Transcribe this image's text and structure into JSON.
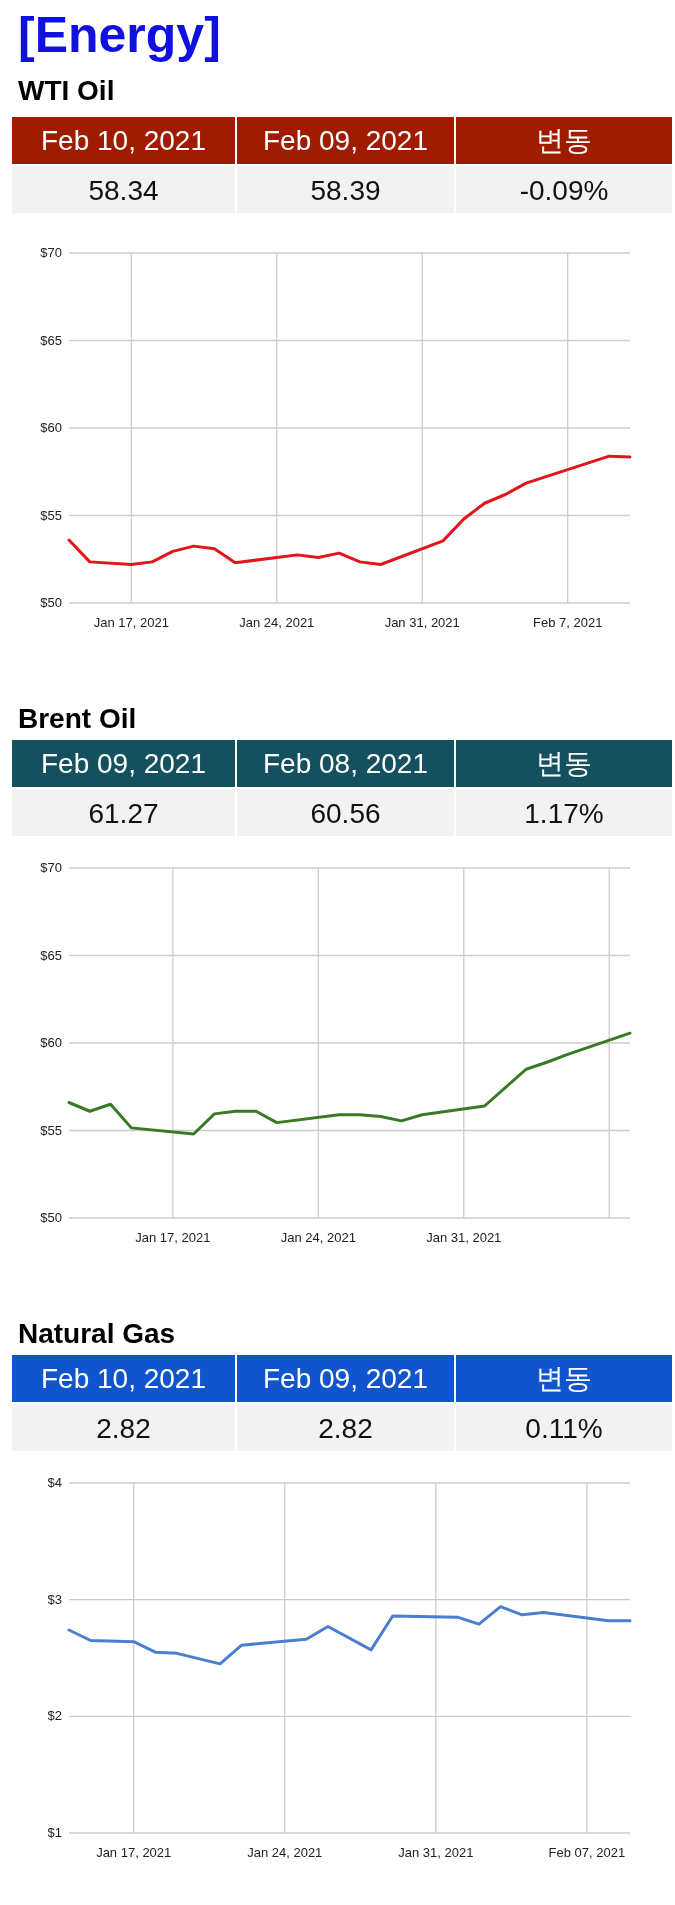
{
  "chart_data": [
    {
      "type": "other",
      "title": "[Energy]",
      "subtitle": "WTI Oil",
      "color": "#a01c00",
      "annotations": [
        "Feb 10, 2021",
        "Feb 09, 2021",
        "변동",
        "58.34",
        "58.39",
        "-0.09%"
      ]
    },
    {
      "type": "line",
      "x": [
        "2021-01-14",
        "2021-01-15",
        "2021-01-17",
        "2021-01-18",
        "2021-01-19",
        "2021-01-20",
        "2021-01-21",
        "2021-01-22",
        "2021-01-25",
        "2021-01-26",
        "2021-01-27",
        "2021-01-28",
        "2021-01-29",
        "2021-02-01",
        "2021-02-02",
        "2021-02-03",
        "2021-02-04",
        "2021-02-05",
        "2021-02-09",
        "2021-02-10"
      ],
      "series": [
        {
          "color": "#e0161a",
          "values": [
            53.6,
            52.35,
            52.2,
            52.35,
            52.95,
            53.25,
            53.1,
            52.3,
            52.75,
            52.6,
            52.85,
            52.35,
            52.2,
            53.55,
            54.8,
            55.7,
            56.2,
            56.85,
            58.39,
            58.34
          ]
        }
      ],
      "xlim": [
        "2021-01-14",
        "2021-02-10"
      ],
      "xticks": [
        {
          "value": "2021-01-17",
          "label": "Jan 17, 2021"
        },
        {
          "value": "2021-01-24",
          "label": "Jan 24, 2021"
        },
        {
          "value": "2021-01-31",
          "label": "Jan 31, 2021"
        },
        {
          "value": "2021-02-07",
          "label": "Feb 7, 2021"
        }
      ],
      "ylim": [
        50,
        70
      ],
      "yticks": [
        {
          "value": 50,
          "label": "$50"
        },
        {
          "value": 55,
          "label": "$55"
        },
        {
          "value": 60,
          "label": "$60"
        },
        {
          "value": 65,
          "label": "$65"
        },
        {
          "value": 70,
          "label": "$70"
        }
      ],
      "grid": true
    },
    {
      "type": "other",
      "title": "Brent Oil",
      "color": "#15505e",
      "annotations": [
        "Feb 09, 2021",
        "Feb 08, 2021",
        "변동",
        "61.27",
        "60.56",
        "1.17%"
      ]
    },
    {
      "type": "line",
      "x": [
        "2021-01-12",
        "2021-01-13",
        "2021-01-14",
        "2021-01-15",
        "2021-01-18",
        "2021-01-19",
        "2021-01-20",
        "2021-01-21",
        "2021-01-22",
        "2021-01-25",
        "2021-01-26",
        "2021-01-27",
        "2021-01-28",
        "2021-01-29",
        "2021-02-01",
        "2021-02-02",
        "2021-02-03",
        "2021-02-04",
        "2021-02-05",
        "2021-02-08"
      ],
      "series": [
        {
          "color": "#3a7a24",
          "values": [
            56.6,
            56.1,
            56.5,
            55.15,
            54.8,
            55.95,
            56.1,
            56.1,
            55.45,
            55.9,
            55.9,
            55.8,
            55.55,
            55.9,
            56.4,
            57.45,
            58.5,
            58.9,
            59.35,
            60.56
          ]
        }
      ],
      "xlim": [
        "2021-01-12",
        "2021-02-08"
      ],
      "xticks": [
        {
          "value": "2021-01-17",
          "label": "Jan 17, 2021"
        },
        {
          "value": "2021-01-24",
          "label": "Jan 24, 2021"
        },
        {
          "value": "2021-01-31",
          "label": "Jan 31, 2021"
        },
        {
          "value": "2021-02-07",
          "label": null
        }
      ],
      "ylim": [
        50,
        70
      ],
      "yticks": [
        {
          "value": 50,
          "label": "$50"
        },
        {
          "value": 55,
          "label": "$55"
        },
        {
          "value": 60,
          "label": "$60"
        },
        {
          "value": 65,
          "label": "$65"
        },
        {
          "value": 70,
          "label": "$70"
        }
      ],
      "grid": true
    },
    {
      "type": "other",
      "title": "Natural Gas",
      "color": "#1155cc",
      "annotations": [
        "Feb 10, 2021",
        "Feb 09, 2021",
        "변동",
        "2.82",
        "2.82",
        "0.11%"
      ]
    },
    {
      "type": "line",
      "x": [
        "2021-01-14",
        "2021-01-15",
        "2021-01-17",
        "2021-01-18",
        "2021-01-19",
        "2021-01-21",
        "2021-01-22",
        "2021-01-25",
        "2021-01-26",
        "2021-01-28",
        "2021-01-29",
        "2021-02-01",
        "2021-02-02",
        "2021-02-03",
        "2021-02-04",
        "2021-02-05",
        "2021-02-08",
        "2021-02-09"
      ],
      "series": [
        {
          "color": "#4a7fd0",
          "values": [
            2.74,
            2.65,
            2.64,
            2.55,
            2.54,
            2.45,
            2.61,
            2.66,
            2.77,
            2.57,
            2.86,
            2.85,
            2.79,
            2.94,
            2.87,
            2.89,
            2.82,
            2.82
          ]
        }
      ],
      "xlim": [
        "2021-01-14",
        "2021-02-09"
      ],
      "xticks": [
        {
          "value": "2021-01-17",
          "label": "Jan 17, 2021"
        },
        {
          "value": "2021-01-24",
          "label": "Jan 24, 2021"
        },
        {
          "value": "2021-01-31",
          "label": "Jan 31, 2021"
        },
        {
          "value": "2021-02-07",
          "label": "Feb 07, 2021"
        }
      ],
      "ylim": [
        1,
        4
      ],
      "yticks": [
        {
          "value": 1,
          "label": "$1"
        },
        {
          "value": 2,
          "label": "$2"
        },
        {
          "value": 3,
          "label": "$3"
        },
        {
          "value": 4,
          "label": "$4"
        }
      ],
      "grid": true
    }
  ]
}
